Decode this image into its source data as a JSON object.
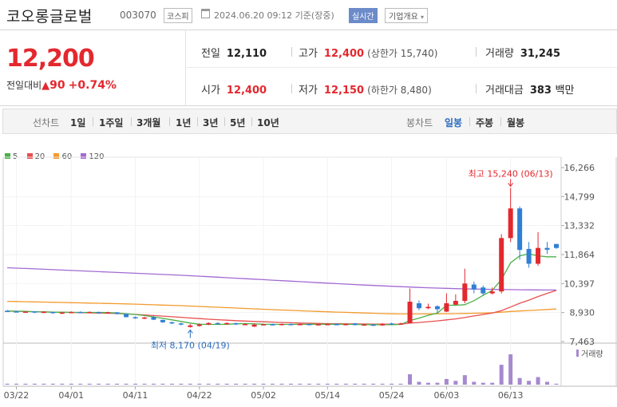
{
  "header": {
    "stock_name": "코오롱글로벌",
    "stock_code": "003070",
    "market_badge": "코스피",
    "timestamp": "2024.06.20 09:12 기준(장중)",
    "realtime_badge": "실시간",
    "overview_button": "기업개요"
  },
  "price": {
    "current": "12,200",
    "change_label": "전일대비",
    "change_value": "90",
    "change_pct": "+0.74%"
  },
  "stats": {
    "prev_close_label": "전일",
    "prev_close": "12,110",
    "high_label": "고가",
    "high": "12,400",
    "upper_limit": "(상한가 15,740)",
    "volume_label": "거래량",
    "volume": "31,245",
    "open_label": "시가",
    "open": "12,400",
    "low_label": "저가",
    "low": "12,150",
    "lower_limit": "(하한가 8,480)",
    "amount_label": "거래대금",
    "amount": "383",
    "amount_unit": "백만"
  },
  "period_tabs": {
    "line_label": "선차트",
    "line_items": [
      "1일",
      "1주일",
      "3개월",
      "1년",
      "3년",
      "5년",
      "10년"
    ],
    "candle_label": "봉차트",
    "candle_items": [
      "일봉",
      "주봉",
      "월봉"
    ],
    "selected": "일봉"
  },
  "colors": {
    "up": "#e3282e",
    "down": "#2f7fd4",
    "ma5": "#4cb04a",
    "ma20": "#e84f4f",
    "ma60": "#f39a2d",
    "ma120": "#a36ad3",
    "volume": "#a689cf"
  },
  "chart_data": {
    "type": "candlestick",
    "legend": [
      {
        "name": "5",
        "color": "#4cb04a"
      },
      {
        "name": "20",
        "color": "#e84f4f"
      },
      {
        "name": "60",
        "color": "#f39a2d"
      },
      {
        "name": "120",
        "color": "#a36ad3"
      }
    ],
    "y_ticks": [
      "16,266",
      "14,799",
      "13,332",
      "11,864",
      "10,397",
      "8,930",
      "7,463"
    ],
    "ylim": [
      7463,
      16266
    ],
    "x_ticks": [
      "03/22",
      "04/01",
      "04/11",
      "04/22",
      "05/02",
      "05/14",
      "05/24",
      "06/03",
      "06/13"
    ],
    "annotations": {
      "max": {
        "label": "최고 15,240 (06/13)",
        "value": 15240
      },
      "min": {
        "label": "최저 8,170 (04/19)",
        "value": 8170
      }
    },
    "volume_label": "거래량",
    "candles": [
      {
        "date": "03/21",
        "o": 9020,
        "c": 9000,
        "h": 9060,
        "l": 8970,
        "v": 1
      },
      {
        "date": "03/22",
        "o": 8990,
        "c": 8960,
        "h": 9020,
        "l": 8940,
        "v": 1
      },
      {
        "date": "03/25",
        "o": 8960,
        "c": 8980,
        "h": 9010,
        "l": 8930,
        "v": 1
      },
      {
        "date": "03/26",
        "o": 8990,
        "c": 8940,
        "h": 9000,
        "l": 8900,
        "v": 1
      },
      {
        "date": "03/27",
        "o": 8940,
        "c": 8970,
        "h": 9000,
        "l": 8920,
        "v": 1
      },
      {
        "date": "03/28",
        "o": 8960,
        "c": 8900,
        "h": 8980,
        "l": 8870,
        "v": 1
      },
      {
        "date": "03/29",
        "o": 8900,
        "c": 8930,
        "h": 8960,
        "l": 8860,
        "v": 1
      },
      {
        "date": "04/01",
        "o": 8930,
        "c": 8960,
        "h": 8990,
        "l": 8900,
        "v": 1
      },
      {
        "date": "04/02",
        "o": 8960,
        "c": 8920,
        "h": 8990,
        "l": 8900,
        "v": 1
      },
      {
        "date": "04/03",
        "o": 8920,
        "c": 8960,
        "h": 8990,
        "l": 8900,
        "v": 1
      },
      {
        "date": "04/04",
        "o": 8950,
        "c": 8930,
        "h": 8980,
        "l": 8900,
        "v": 1
      },
      {
        "date": "04/05",
        "o": 8930,
        "c": 8940,
        "h": 8970,
        "l": 8900,
        "v": 1
      },
      {
        "date": "04/08",
        "o": 8940,
        "c": 8860,
        "h": 8960,
        "l": 8830,
        "v": 1
      },
      {
        "date": "04/09",
        "o": 8860,
        "c": 8700,
        "h": 8870,
        "l": 8680,
        "v": 1
      },
      {
        "date": "04/11",
        "o": 8700,
        "c": 8640,
        "h": 8730,
        "l": 8610,
        "v": 1
      },
      {
        "date": "04/12",
        "o": 8640,
        "c": 8680,
        "h": 8720,
        "l": 8600,
        "v": 1
      },
      {
        "date": "04/15",
        "o": 8700,
        "c": 8570,
        "h": 8750,
        "l": 8550,
        "v": 1
      },
      {
        "date": "04/16",
        "o": 8560,
        "c": 8440,
        "h": 8570,
        "l": 8400,
        "v": 1
      },
      {
        "date": "04/17",
        "o": 8440,
        "c": 8400,
        "h": 8470,
        "l": 8350,
        "v": 1
      },
      {
        "date": "04/18",
        "o": 8380,
        "c": 8320,
        "h": 8420,
        "l": 8280,
        "v": 1
      },
      {
        "date": "04/19",
        "o": 8200,
        "c": 8280,
        "h": 8350,
        "l": 8170,
        "v": 1
      },
      {
        "date": "04/22",
        "o": 8250,
        "c": 8330,
        "h": 8380,
        "l": 8220,
        "v": 1
      },
      {
        "date": "04/23",
        "o": 8330,
        "c": 8400,
        "h": 8440,
        "l": 8300,
        "v": 1
      },
      {
        "date": "04/24",
        "o": 8400,
        "c": 8380,
        "h": 8440,
        "l": 8350,
        "v": 1
      },
      {
        "date": "04/25",
        "o": 8380,
        "c": 8400,
        "h": 8430,
        "l": 8350,
        "v": 1
      },
      {
        "date": "04/26",
        "o": 8390,
        "c": 8330,
        "h": 8420,
        "l": 8300,
        "v": 1
      },
      {
        "date": "04/29",
        "o": 8330,
        "c": 8350,
        "h": 8380,
        "l": 8300,
        "v": 1
      },
      {
        "date": "04/30",
        "o": 8220,
        "c": 8320,
        "h": 8380,
        "l": 8200,
        "v": 1
      },
      {
        "date": "05/02",
        "o": 8320,
        "c": 8340,
        "h": 8370,
        "l": 8290,
        "v": 1
      },
      {
        "date": "05/03",
        "o": 8340,
        "c": 8320,
        "h": 8370,
        "l": 8290,
        "v": 1
      },
      {
        "date": "05/07",
        "o": 8320,
        "c": 8350,
        "h": 8380,
        "l": 8290,
        "v": 1
      },
      {
        "date": "05/08",
        "o": 8350,
        "c": 8330,
        "h": 8380,
        "l": 8300,
        "v": 1
      },
      {
        "date": "05/09",
        "o": 8330,
        "c": 8350,
        "h": 8380,
        "l": 8300,
        "v": 1
      },
      {
        "date": "05/10",
        "o": 8350,
        "c": 8330,
        "h": 8380,
        "l": 8300,
        "v": 1
      },
      {
        "date": "05/13",
        "o": 8330,
        "c": 8340,
        "h": 8370,
        "l": 8300,
        "v": 1
      },
      {
        "date": "05/14",
        "o": 8340,
        "c": 8350,
        "h": 8380,
        "l": 8310,
        "v": 1
      },
      {
        "date": "05/16",
        "o": 8350,
        "c": 8320,
        "h": 8380,
        "l": 8290,
        "v": 1
      },
      {
        "date": "05/17",
        "o": 8320,
        "c": 8350,
        "h": 8380,
        "l": 8290,
        "v": 1
      },
      {
        "date": "05/20",
        "o": 8380,
        "c": 8300,
        "h": 8400,
        "l": 8280,
        "v": 1
      },
      {
        "date": "05/21",
        "o": 8300,
        "c": 8330,
        "h": 8370,
        "l": 8280,
        "v": 1
      },
      {
        "date": "05/22",
        "o": 8320,
        "c": 8280,
        "h": 8350,
        "l": 8260,
        "v": 1
      },
      {
        "date": "05/23",
        "o": 8280,
        "c": 8350,
        "h": 8400,
        "l": 8260,
        "v": 1
      },
      {
        "date": "05/24",
        "o": 8380,
        "c": 8330,
        "h": 8420,
        "l": 8300,
        "v": 1
      },
      {
        "date": "05/27",
        "o": 8330,
        "c": 8380,
        "h": 8420,
        "l": 8310,
        "v": 1
      },
      {
        "date": "05/28",
        "o": 8400,
        "c": 9480,
        "h": 10150,
        "l": 8380,
        "v": 11
      },
      {
        "date": "05/29",
        "o": 9400,
        "c": 9150,
        "h": 9550,
        "l": 9050,
        "v": 3
      },
      {
        "date": "05/30",
        "o": 9150,
        "c": 9220,
        "h": 9380,
        "l": 9100,
        "v": 2
      },
      {
        "date": "05/31",
        "o": 9250,
        "c": 9100,
        "h": 9300,
        "l": 8900,
        "v": 2
      },
      {
        "date": "06/03",
        "o": 8980,
        "c": 9400,
        "h": 9900,
        "l": 8950,
        "v": 6
      },
      {
        "date": "06/04",
        "o": 9330,
        "c": 9520,
        "h": 9850,
        "l": 9300,
        "v": 4
      },
      {
        "date": "06/05",
        "o": 9520,
        "c": 10400,
        "h": 11150,
        "l": 9400,
        "v": 10
      },
      {
        "date": "06/07",
        "o": 10350,
        "c": 10100,
        "h": 10500,
        "l": 9900,
        "v": 3
      },
      {
        "date": "06/10",
        "o": 10200,
        "c": 9900,
        "h": 10300,
        "l": 9800,
        "v": 2
      },
      {
        "date": "06/11",
        "o": 9900,
        "c": 10000,
        "h": 10200,
        "l": 9850,
        "v": 2
      },
      {
        "date": "06/12",
        "o": 10000,
        "c": 12700,
        "h": 12900,
        "l": 9900,
        "v": 21
      },
      {
        "date": "06/13",
        "o": 12700,
        "c": 14200,
        "h": 15240,
        "l": 12500,
        "v": 32
      },
      {
        "date": "06/14",
        "o": 14200,
        "c": 12100,
        "h": 14300,
        "l": 11600,
        "v": 7
      },
      {
        "date": "06/17",
        "o": 12150,
        "c": 11400,
        "h": 12500,
        "l": 11200,
        "v": 4
      },
      {
        "date": "06/18",
        "o": 11400,
        "c": 12200,
        "h": 13000,
        "l": 11300,
        "v": 8
      },
      {
        "date": "06/19",
        "o": 12200,
        "c": 12110,
        "h": 12500,
        "l": 11900,
        "v": 3
      },
      {
        "date": "06/20",
        "o": 12400,
        "c": 12200,
        "h": 12400,
        "l": 12150,
        "v": 1
      }
    ],
    "ma": {
      "5": [
        9010,
        9000,
        8990,
        8975,
        8960,
        8950,
        8945,
        8940,
        8938,
        8935,
        8935,
        8930,
        8910,
        8870,
        8830,
        8780,
        8710,
        8640,
        8560,
        8480,
        8400,
        8340,
        8330,
        8330,
        8340,
        8360,
        8370,
        8360,
        8340,
        8335,
        8330,
        8330,
        8335,
        8340,
        8340,
        8340,
        8340,
        8335,
        8330,
        8325,
        8320,
        8315,
        8320,
        8330,
        8520,
        8650,
        8790,
        8900,
        9300,
        9300,
        9330,
        9530,
        9800,
        10050,
        10600,
        11450,
        11800,
        11900,
        11800,
        11750,
        11750
      ],
      "20": [
        9000,
        8995,
        8985,
        8975,
        8965,
        8955,
        8945,
        8935,
        8925,
        8915,
        8905,
        8895,
        8880,
        8860,
        8835,
        8810,
        8780,
        8750,
        8720,
        8690,
        8655,
        8625,
        8595,
        8570,
        8545,
        8520,
        8500,
        8480,
        8465,
        8450,
        8430,
        8415,
        8400,
        8390,
        8380,
        8370,
        8365,
        8360,
        8355,
        8350,
        8345,
        8342,
        8340,
        8340,
        8400,
        8430,
        8470,
        8510,
        8560,
        8610,
        8680,
        8760,
        8830,
        8910,
        9030,
        9210,
        9400,
        9560,
        9740,
        9900,
        10050
      ],
      "60": [
        9500,
        9490,
        9480,
        9470,
        9460,
        9450,
        9440,
        9430,
        9420,
        9410,
        9400,
        9390,
        9380,
        9370,
        9355,
        9340,
        9325,
        9310,
        9295,
        9280,
        9260,
        9240,
        9220,
        9200,
        9180,
        9160,
        9140,
        9120,
        9100,
        9080,
        9060,
        9040,
        9020,
        9000,
        8985,
        8970,
        8955,
        8940,
        8925,
        8910,
        8895,
        8880,
        8870,
        8860,
        8860,
        8862,
        8865,
        8868,
        8872,
        8878,
        8885,
        8895,
        8905,
        8920,
        8950,
        8985,
        9010,
        9035,
        9060,
        9085,
        9110
      ],
      "120": [
        11200,
        11180,
        11160,
        11140,
        11120,
        11100,
        11080,
        11060,
        11040,
        11020,
        11000,
        10980,
        10960,
        10940,
        10920,
        10900,
        10880,
        10860,
        10840,
        10820,
        10795,
        10770,
        10745,
        10720,
        10695,
        10670,
        10645,
        10620,
        10595,
        10570,
        10545,
        10520,
        10495,
        10470,
        10445,
        10420,
        10395,
        10370,
        10345,
        10320,
        10300,
        10280,
        10260,
        10240,
        10220,
        10200,
        10185,
        10170,
        10155,
        10140,
        10130,
        10120,
        10110,
        10100,
        10095,
        10090,
        10085,
        10080,
        10075,
        10070,
        10070
      ]
    }
  }
}
